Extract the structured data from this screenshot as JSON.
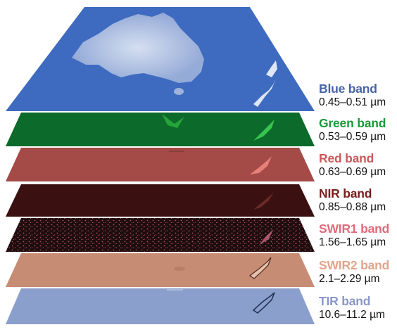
{
  "bands": [
    {
      "name": "Blue band",
      "range": "0.45–0.51 µm",
      "color": "#4a63a5",
      "layer_color": "#3e6bc0"
    },
    {
      "name": "Green band",
      "range": "0.53–0.59 µm",
      "color": "#1a9a3c",
      "layer_color": "#0c6a2a"
    },
    {
      "name": "Red band",
      "range": "0.63–0.69 µm",
      "color": "#c95a5c",
      "layer_color": "#a44a47"
    },
    {
      "name": "NIR band",
      "range": "0.85–0.88 µm",
      "color": "#7a1d1d",
      "layer_color": "#3a1110"
    },
    {
      "name": "SWIR1 band",
      "range": "1.56–1.65 µm",
      "color": "#e06a7a",
      "layer_color": "#1e0d0f"
    },
    {
      "name": "SWIR2 band",
      "range": "2.1–2.29 µm",
      "color": "#e0a48a",
      "layer_color": "#c78c74"
    },
    {
      "name": "TIR band",
      "range": "10.6–11.2 µm",
      "color": "#8a97c8",
      "layer_color": "#8a9fcc"
    }
  ]
}
